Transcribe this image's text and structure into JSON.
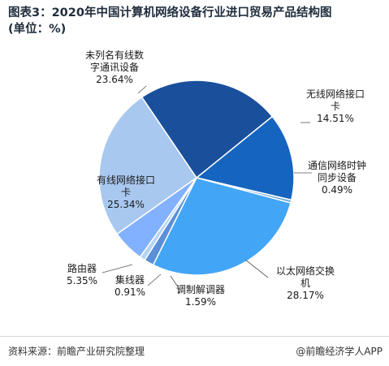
{
  "title": "图表3：2020年中国计算机网络设备行业进口贸易产品结构图",
  "unit": "(单位：%)",
  "footer": {
    "source": "资料来源：前瞻产业研究院整理",
    "brand": "@前瞻经济学人APP"
  },
  "chart_data": {
    "type": "pie",
    "title": "图表3：2020年中国计算机网络设备行业进口贸易产品结构图",
    "unit": "%",
    "slices": [
      {
        "label": "无线网络接口卡",
        "value": 14.51,
        "color": "#1565c0"
      },
      {
        "label": "通信网络时钟同步设备",
        "value": 0.49,
        "color": "#6fa8dc"
      },
      {
        "label": "以太网络交换机",
        "value": 28.17,
        "color": "#42a5f5"
      },
      {
        "label": "调制解调器",
        "value": 1.59,
        "color": "#5b8fd9"
      },
      {
        "label": "集线器",
        "value": 0.91,
        "color": "#b3d4f5"
      },
      {
        "label": "路由器",
        "value": 5.35,
        "color": "#82b1ff"
      },
      {
        "label": "有线网络接口卡",
        "value": 25.34,
        "color": "#a9c8f0"
      },
      {
        "label": "未列名有线数字通讯设备",
        "value": 23.64,
        "color": "#1a4f9c"
      }
    ],
    "value_labels": [
      "14.51%",
      "0.49%",
      "28.17%",
      "1.59%",
      "0.91%",
      "5.35%",
      "25.34%",
      "23.64%"
    ]
  }
}
